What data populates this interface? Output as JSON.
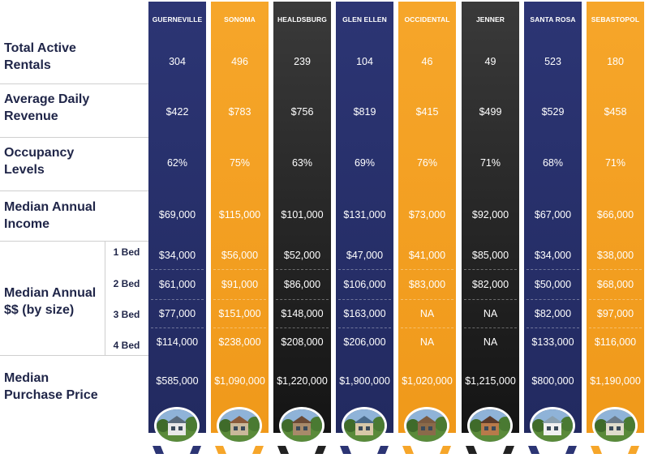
{
  "chart_data": {
    "type": "table",
    "columns": [
      {
        "name": "GUERNEVILLE",
        "color": "#2c3574"
      },
      {
        "name": "SONOMA",
        "color": "#f6a62a"
      },
      {
        "name": "HEALDSBURG",
        "color": "#2a2a2a"
      },
      {
        "name": "GLEN ELLEN",
        "color": "#2c3574"
      },
      {
        "name": "OCCIDENTAL",
        "color": "#f6a62a"
      },
      {
        "name": "JENNER",
        "color": "#2a2a2a"
      },
      {
        "name": "SANTA ROSA",
        "color": "#2c3574"
      },
      {
        "name": "SEBASTOPOL",
        "color": "#f6a62a"
      }
    ],
    "rows": [
      {
        "label": "Total Active Rentals",
        "values": [
          "304",
          "496",
          "239",
          "104",
          "46",
          "49",
          "523",
          "180"
        ]
      },
      {
        "label": "Average Daily Revenue",
        "values": [
          "$422",
          "$783",
          "$756",
          "$819",
          "$415",
          "$499",
          "$529",
          "$458"
        ]
      },
      {
        "label": "Occupancy Levels",
        "values": [
          "62%",
          "75%",
          "63%",
          "69%",
          "76%",
          "71%",
          "68%",
          "71%"
        ]
      },
      {
        "label": "Median Annual Income",
        "values": [
          "$69,000",
          "$115,000",
          "$101,000",
          "$131,000",
          "$73,000",
          "$92,000",
          "$67,000",
          "$66,000"
        ]
      },
      {
        "label": "Median Annual $$ (by size)",
        "sublabel": "1 Bed",
        "values": [
          "$34,000",
          "$56,000",
          "$52,000",
          "$47,000",
          "$41,000",
          "$85,000",
          "$34,000",
          "$38,000"
        ]
      },
      {
        "label": "Median Annual $$ (by size)",
        "sublabel": "2 Bed",
        "values": [
          "$61,000",
          "$91,000",
          "$86,000",
          "$106,000",
          "$83,000",
          "$82,000",
          "$50,000",
          "$68,000"
        ]
      },
      {
        "label": "Median Annual $$ (by size)",
        "sublabel": "3 Bed",
        "values": [
          "$77,000",
          "$151,000",
          "$148,000",
          "$163,000",
          "NA",
          "NA",
          "$82,000",
          "$97,000"
        ]
      },
      {
        "label": "Median Annual $$ (by size)",
        "sublabel": "4 Bed",
        "values": [
          "$114,000",
          "$238,000",
          "$208,000",
          "$206,000",
          "NA",
          "NA",
          "$133,000",
          "$116,000"
        ]
      },
      {
        "label": "Median Purchase Price",
        "values": [
          "$585,000",
          "$1,090,000",
          "$1,220,000",
          "$1,900,000",
          "$1,020,000",
          "$1,215,000",
          "$800,000",
          "$1,190,000"
        ]
      }
    ]
  },
  "labels": {
    "total_active_rentals": "Total Active Rentals",
    "average_daily_revenue": "Average Daily Revenue",
    "occupancy_levels": "Occupancy Levels",
    "median_annual_income": "Median Annual Income",
    "median_annual_by_size": "Median Annual $$ (by size)",
    "bed_1": "1 Bed",
    "bed_2": "2 Bed",
    "bed_3": "3 Bed",
    "bed_4": "4 Bed",
    "median_purchase_price": "Median Purchase Price"
  },
  "colors": {
    "navy": "#2c3574",
    "orange": "#f6a62a",
    "black": "#2a2a2a",
    "label_text": "#1f2548"
  }
}
